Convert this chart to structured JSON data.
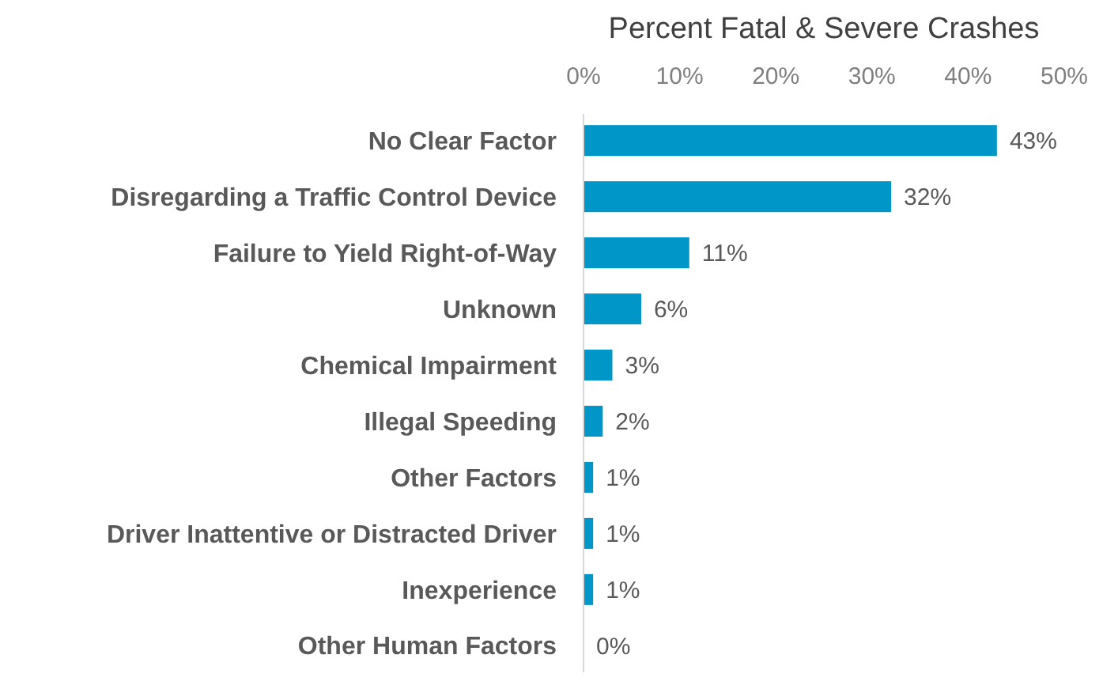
{
  "chart_data": {
    "type": "bar",
    "orientation": "horizontal",
    "xlabel": "Percent Fatal & Severe Crashes",
    "categories": [
      "No Clear Factor",
      "Disregarding a Traffic Control Device",
      "Failure to Yield Right-of-Way",
      "Unknown",
      "Chemical Impairment",
      "Illegal Speeding",
      "Other Factors",
      "Driver Inattentive or Distracted Driver",
      "Inexperience",
      "Other Human Factors"
    ],
    "values": [
      43,
      32,
      11,
      6,
      3,
      2,
      1,
      1,
      1,
      0
    ],
    "value_labels": [
      "43%",
      "32%",
      "11%",
      "6%",
      "3%",
      "2%",
      "1%",
      "1%",
      "1%",
      "0%"
    ],
    "color": "#0096c8",
    "xlim": [
      0,
      50
    ],
    "xticks": [
      {
        "value": 0,
        "label": "0%"
      },
      {
        "value": 10,
        "label": "10%"
      },
      {
        "value": 20,
        "label": "20%"
      },
      {
        "value": 30,
        "label": "30%"
      },
      {
        "value": 40,
        "label": "40%"
      },
      {
        "value": 50,
        "label": "50%"
      }
    ],
    "grid": false
  }
}
